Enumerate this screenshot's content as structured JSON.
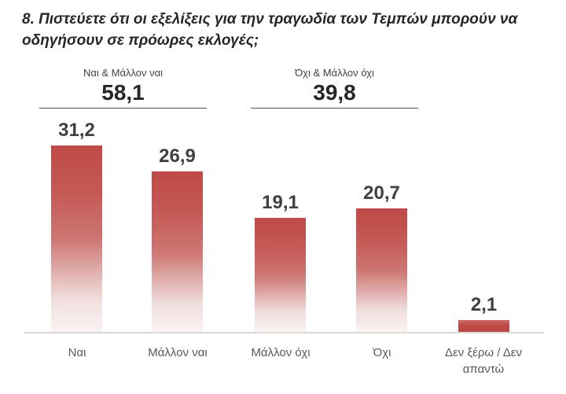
{
  "title": "8. Πιστεύετε ότι οι εξελίξεις για την τραγωδία των Τεμπών μπορούν να οδηγήσουν σε πρόωρες εκλογές;",
  "chart_data": {
    "type": "bar",
    "title": "8. Πιστεύετε ότι οι εξελίξεις για την τραγωδία των Τεμπών μπορούν να οδηγήσουν σε πρόωρες εκλογές;",
    "categories": [
      "Ναι",
      "Μάλλον ναι",
      "Μάλλον όχι",
      "Όχι",
      "Δεν ξέρω / Δεν απαντώ"
    ],
    "values": [
      31.2,
      26.9,
      19.1,
      20.7,
      2.1
    ],
    "value_labels": [
      "31,2",
      "26,9",
      "19,1",
      "20,7",
      "2,1"
    ],
    "group_totals": [
      {
        "label": "Ναι & Μάλλον ναι",
        "value": 58.1,
        "value_label": "58,1",
        "spans_categories": [
          "Ναι",
          "Μάλλον ναι"
        ]
      },
      {
        "label": "Όχι & Μάλλον όχι",
        "value": 39.8,
        "value_label": "39,8",
        "spans_categories": [
          "Μάλλον όχι",
          "Όχι"
        ]
      }
    ],
    "grid": false,
    "legend": "none",
    "bar_color_top": "#bf4a47",
    "bar_color_bottom": "#faf4f3",
    "axis_line_color": "#d9d9d9"
  },
  "colors": {
    "background": "#ffffff",
    "title_text": "#262626",
    "value_text": "#3f3f3f",
    "category_text": "#595959",
    "group_line": "#555555"
  }
}
